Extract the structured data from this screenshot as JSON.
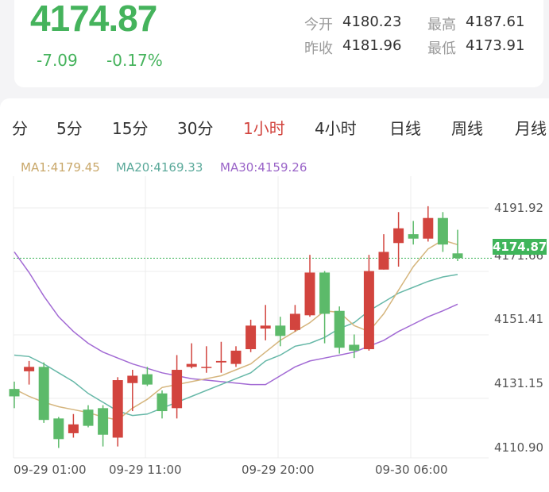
{
  "quote": {
    "price": "4174.87",
    "change": "-7.09",
    "change_pct": "-0.17%",
    "open_label": "今开",
    "open_value": "4180.23",
    "high_label": "最高",
    "high_value": "4187.61",
    "prev_close_label": "昨收",
    "prev_close_value": "4181.96",
    "low_label": "最低",
    "low_value": "4173.91"
  },
  "tabs": [
    {
      "label": "分"
    },
    {
      "label": "5分"
    },
    {
      "label": "15分"
    },
    {
      "label": "30分"
    },
    {
      "label": "1小时"
    },
    {
      "label": "4小时"
    },
    {
      "label": "日线"
    },
    {
      "label": "周线"
    },
    {
      "label": "月线"
    }
  ],
  "active_tab": "1小时",
  "ma_legend": {
    "ma1": "MA1:4179.45",
    "ma20": "MA20:4169.33",
    "ma30": "MA30:4159.26"
  },
  "axis": {
    "y_labels": [
      "4191.92",
      "4171.66",
      "4151.41",
      "4131.15",
      "4110.90"
    ],
    "x_labels": [
      "09-29 01:00",
      "09-29 11:00",
      "09-29 20:00",
      "09-30 06:00"
    ],
    "current_price_tag": "4174.87"
  },
  "colors": {
    "up": "#d2443e",
    "down": "#5cba6a",
    "ma1": "#d5b57d",
    "ma20": "#67b8a8",
    "ma30": "#a26ad4",
    "price_green": "#45b35c"
  },
  "chart_data": {
    "type": "candlestick",
    "ylim": [
      4110.9,
      4191.92
    ],
    "current_price": 4174.87,
    "candles": [
      {
        "o": 4130.5,
        "c": 4128.0,
        "h": 4133.0,
        "l": 4124.0
      },
      {
        "o": 4136.5,
        "c": 4138.0,
        "h": 4140.0,
        "l": 4132.0
      },
      {
        "o": 4138.0,
        "c": 4120.0,
        "h": 4139.5,
        "l": 4119.0
      },
      {
        "o": 4120.5,
        "c": 4113.5,
        "h": 4121.0,
        "l": 4110.5
      },
      {
        "o": 4115.5,
        "c": 4118.5,
        "h": 4122.0,
        "l": 4114.0
      },
      {
        "o": 4123.5,
        "c": 4118.0,
        "h": 4125.0,
        "l": 4117.5
      },
      {
        "o": 4124.0,
        "c": 4115.0,
        "h": 4125.0,
        "l": 4111.0
      },
      {
        "o": 4114.0,
        "c": 4133.5,
        "h": 4134.5,
        "l": 4111.0
      },
      {
        "o": 4132.5,
        "c": 4135.0,
        "h": 4137.0,
        "l": 4123.0
      },
      {
        "o": 4135.5,
        "c": 4132.0,
        "h": 4138.0,
        "l": 4131.5
      },
      {
        "o": 4129.0,
        "c": 4123.0,
        "h": 4130.0,
        "l": 4120.5
      },
      {
        "o": 4124.0,
        "c": 4137.0,
        "h": 4142.0,
        "l": 4120.5
      },
      {
        "o": 4138.0,
        "c": 4139.0,
        "h": 4146.0,
        "l": 4137.5
      },
      {
        "o": 4138.0,
        "c": 4138.0,
        "h": 4145.0,
        "l": 4136.0
      },
      {
        "o": 4139.5,
        "c": 4140.0,
        "h": 4146.5,
        "l": 4136.0
      },
      {
        "o": 4139.0,
        "c": 4143.5,
        "h": 4145.0,
        "l": 4138.0
      },
      {
        "o": 4144.0,
        "c": 4152.0,
        "h": 4154.0,
        "l": 4143.0
      },
      {
        "o": 4151.0,
        "c": 4152.0,
        "h": 4159.0,
        "l": 4147.0
      },
      {
        "o": 4152.0,
        "c": 4148.5,
        "h": 4155.0,
        "l": 4145.0
      },
      {
        "o": 4150.5,
        "c": 4156.0,
        "h": 4159.0,
        "l": 4150.0
      },
      {
        "o": 4155.5,
        "c": 4170.0,
        "h": 4176.0,
        "l": 4155.0
      },
      {
        "o": 4170.0,
        "c": 4156.0,
        "h": 4170.5,
        "l": 4146.0
      },
      {
        "o": 4157.0,
        "c": 4144.5,
        "h": 4158.5,
        "l": 4142.5
      },
      {
        "o": 4145.5,
        "c": 4143.5,
        "h": 4149.0,
        "l": 4141.0
      },
      {
        "o": 4144.0,
        "c": 4170.5,
        "h": 4176.0,
        "l": 4143.5
      },
      {
        "o": 4171.0,
        "c": 4177.0,
        "h": 4183.0,
        "l": 4171.0
      },
      {
        "o": 4180.0,
        "c": 4185.0,
        "h": 4190.5,
        "l": 4172.0
      },
      {
        "o": 4183.0,
        "c": 4181.5,
        "h": 4187.5,
        "l": 4179.5
      },
      {
        "o": 4181.5,
        "c": 4188.5,
        "h": 4192.5,
        "l": 4180.5
      },
      {
        "o": 4188.5,
        "c": 4179.5,
        "h": 4190.5,
        "l": 4177.0
      },
      {
        "o": 4176.5,
        "c": 4174.9,
        "h": 4184.5,
        "l": 4173.9
      }
    ],
    "ma1": [
      4130.5,
      4128.0,
      4126.0,
      4124.5,
      4123.5,
      4122.5,
      4121.0,
      4120.0,
      4124.0,
      4127.0,
      4131.0,
      4132.0,
      4133.0,
      4134.0,
      4135.0,
      4137.0,
      4139.0,
      4143.0,
      4147.0,
      4150.0,
      4153.0,
      4157.0,
      4156.5,
      4152.0,
      4150.0,
      4156.0,
      4164.0,
      4172.0,
      4178.0,
      4181.0,
      4179.45
    ],
    "ma20": [
      4142.0,
      4141.5,
      4139.0,
      4136.0,
      4133.0,
      4129.0,
      4126.0,
      4123.0,
      4121.5,
      4122.0,
      4124.0,
      4126.0,
      4128.0,
      4130.0,
      4132.0,
      4134.0,
      4136.0,
      4140.0,
      4142.0,
      4145.0,
      4146.0,
      4148.0,
      4151.0,
      4153.0,
      4157.0,
      4160.0,
      4163.0,
      4165.0,
      4167.0,
      4168.5,
      4169.33
    ],
    "ma30": [
      4177.0,
      4170.0,
      4162.0,
      4155.0,
      4150.0,
      4146.0,
      4143.0,
      4141.0,
      4139.0,
      4137.5,
      4136.0,
      4135.0,
      4134.0,
      4133.5,
      4133.0,
      4132.5,
      4132.0,
      4132.0,
      4135.0,
      4138.0,
      4140.0,
      4141.0,
      4142.0,
      4143.0,
      4145.0,
      4147.0,
      4150.0,
      4152.5,
      4155.0,
      4157.0,
      4159.26
    ]
  }
}
